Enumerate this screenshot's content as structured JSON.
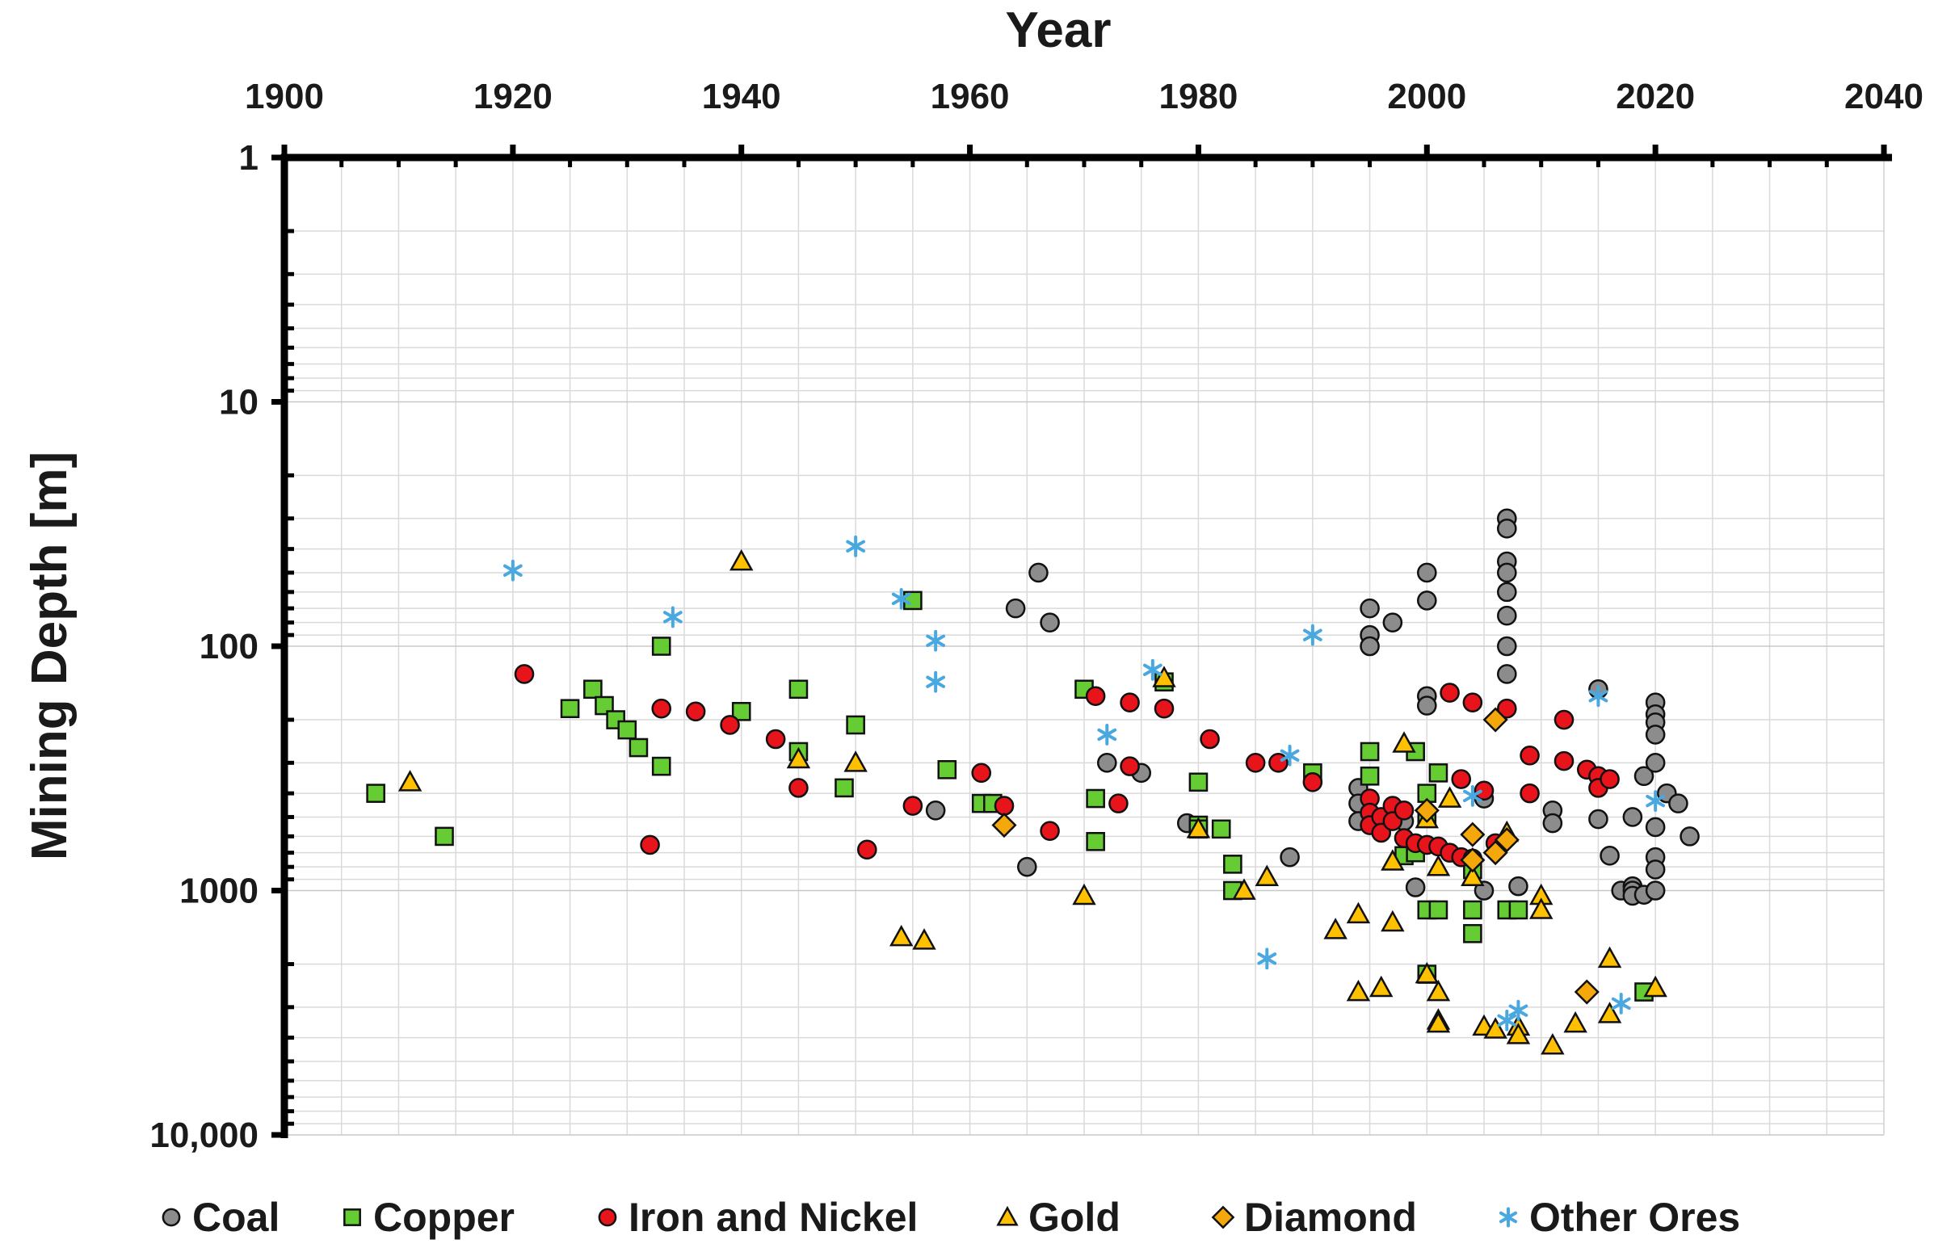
{
  "chart_data": {
    "type": "scatter",
    "title": "",
    "xlabel": "Year",
    "ylabel": "Mining Depth [m]",
    "xlim": [
      1900,
      2040
    ],
    "ylim": [
      1,
      10000
    ],
    "yscale": "log",
    "x_axis_position": "top",
    "y_axis_reversed": true,
    "xticks": [
      1900,
      1920,
      1940,
      1960,
      1980,
      2000,
      2020,
      2040
    ],
    "xtick_labels": [
      "1900",
      "1920",
      "1940",
      "1960",
      "1980",
      "2000",
      "2020",
      "2040"
    ],
    "yticks": [
      1,
      10,
      100,
      1000,
      10000
    ],
    "ytick_labels": [
      "1",
      "10",
      "100",
      "1000",
      "10,000"
    ],
    "grid": true,
    "legend_position": "bottom",
    "series": [
      {
        "name": "Coal",
        "marker": "circle",
        "color": "#8c8c8c",
        "points": [
          [
            1957,
            470
          ],
          [
            1965,
            800
          ],
          [
            1964,
            70
          ],
          [
            1966,
            50
          ],
          [
            1967,
            80
          ],
          [
            1972,
            300
          ],
          [
            1975,
            330
          ],
          [
            1979,
            530
          ],
          [
            1988,
            730
          ],
          [
            1994,
            380
          ],
          [
            1994,
            440
          ],
          [
            1994,
            520
          ],
          [
            1995,
            70
          ],
          [
            1995,
            90
          ],
          [
            1995,
            100
          ],
          [
            1997,
            80
          ],
          [
            1998,
            520
          ],
          [
            1999,
            970
          ],
          [
            2000,
            50
          ],
          [
            2000,
            65
          ],
          [
            2000,
            160
          ],
          [
            2000,
            175
          ],
          [
            2005,
            420
          ],
          [
            2005,
            1000
          ],
          [
            2007,
            30
          ],
          [
            2007,
            33
          ],
          [
            2007,
            45
          ],
          [
            2007,
            50
          ],
          [
            2007,
            60
          ],
          [
            2007,
            75
          ],
          [
            2007,
            100
          ],
          [
            2007,
            130
          ],
          [
            2008,
            960
          ],
          [
            2011,
            470
          ],
          [
            2011,
            530
          ],
          [
            2015,
            150
          ],
          [
            2015,
            510
          ],
          [
            2016,
            720
          ],
          [
            2017,
            1000
          ],
          [
            2018,
            960
          ],
          [
            2018,
            1000
          ],
          [
            2018,
            1050
          ],
          [
            2018,
            500
          ],
          [
            2019,
            340
          ],
          [
            2019,
            1040
          ],
          [
            2020,
            170
          ],
          [
            2020,
            190
          ],
          [
            2020,
            205
          ],
          [
            2020,
            230
          ],
          [
            2020,
            300
          ],
          [
            2020,
            550
          ],
          [
            2020,
            730
          ],
          [
            2020,
            820
          ],
          [
            2020,
            1000
          ],
          [
            2021,
            400
          ],
          [
            2022,
            440
          ],
          [
            2023,
            600
          ]
        ]
      },
      {
        "name": "Copper",
        "marker": "square",
        "color": "#66cc33",
        "points": [
          [
            1908,
            400
          ],
          [
            1914,
            600
          ],
          [
            1925,
            180
          ],
          [
            1927,
            150
          ],
          [
            1928,
            175
          ],
          [
            1929,
            200
          ],
          [
            1930,
            220
          ],
          [
            1931,
            260
          ],
          [
            1933,
            310
          ],
          [
            1933,
            100
          ],
          [
            1940,
            185
          ],
          [
            1945,
            150
          ],
          [
            1945,
            270
          ],
          [
            1949,
            380
          ],
          [
            1950,
            210
          ],
          [
            1955,
            65
          ],
          [
            1958,
            320
          ],
          [
            1961,
            440
          ],
          [
            1962,
            440
          ],
          [
            1970,
            150
          ],
          [
            1971,
            420
          ],
          [
            1971,
            630
          ],
          [
            1977,
            140
          ],
          [
            1980,
            540
          ],
          [
            1980,
            560
          ],
          [
            1980,
            360
          ],
          [
            1982,
            560
          ],
          [
            1983,
            780
          ],
          [
            1983,
            1000
          ],
          [
            1990,
            330
          ],
          [
            1995,
            270
          ],
          [
            1995,
            340
          ],
          [
            1998,
            720
          ],
          [
            1999,
            270
          ],
          [
            1999,
            700
          ],
          [
            2000,
            400
          ],
          [
            2000,
            500
          ],
          [
            2000,
            1200
          ],
          [
            2000,
            2200
          ],
          [
            2001,
            330
          ],
          [
            2001,
            1200
          ],
          [
            2004,
            1200
          ],
          [
            2004,
            1500
          ],
          [
            2004,
            820
          ],
          [
            2007,
            1200
          ],
          [
            2008,
            1200
          ],
          [
            2019,
            2600
          ]
        ]
      },
      {
        "name": "Iron and Nickel",
        "marker": "circle",
        "color": "#e8141b",
        "points": [
          [
            1921,
            130
          ],
          [
            1932,
            650
          ],
          [
            1933,
            180
          ],
          [
            1936,
            185
          ],
          [
            1939,
            210
          ],
          [
            1943,
            240
          ],
          [
            1945,
            380
          ],
          [
            1951,
            680
          ],
          [
            1955,
            450
          ],
          [
            1961,
            330
          ],
          [
            1963,
            450
          ],
          [
            1967,
            570
          ],
          [
            1971,
            160
          ],
          [
            1973,
            440
          ],
          [
            1974,
            170
          ],
          [
            1974,
            310
          ],
          [
            1977,
            180
          ],
          [
            1981,
            240
          ],
          [
            1985,
            300
          ],
          [
            1987,
            300
          ],
          [
            1990,
            360
          ],
          [
            1995,
            420
          ],
          [
            1995,
            480
          ],
          [
            1995,
            540
          ],
          [
            1996,
            500
          ],
          [
            1996,
            580
          ],
          [
            1997,
            450
          ],
          [
            1997,
            520
          ],
          [
            1998,
            470
          ],
          [
            1998,
            610
          ],
          [
            1999,
            640
          ],
          [
            2000,
            650
          ],
          [
            2001,
            660
          ],
          [
            2002,
            155
          ],
          [
            2002,
            700
          ],
          [
            2003,
            350
          ],
          [
            2003,
            730
          ],
          [
            2004,
            170
          ],
          [
            2004,
            740
          ],
          [
            2005,
            390
          ],
          [
            2006,
            640
          ],
          [
            2007,
            180
          ],
          [
            2009,
            280
          ],
          [
            2009,
            400
          ],
          [
            2012,
            200
          ],
          [
            2012,
            295
          ],
          [
            2014,
            320
          ],
          [
            2015,
            340
          ],
          [
            2015,
            380
          ],
          [
            2016,
            350
          ]
        ]
      },
      {
        "name": "Gold",
        "marker": "triangle",
        "color": "#ffc000",
        "points": [
          [
            1911,
            360
          ],
          [
            1940,
            45
          ],
          [
            1945,
            290
          ],
          [
            1950,
            300
          ],
          [
            1954,
            1550
          ],
          [
            1956,
            1600
          ],
          [
            1970,
            1050
          ],
          [
            1977,
            135
          ],
          [
            1980,
            560
          ],
          [
            1984,
            1000
          ],
          [
            1986,
            880
          ],
          [
            1992,
            1450
          ],
          [
            1994,
            1250
          ],
          [
            1994,
            2600
          ],
          [
            1996,
            2500
          ],
          [
            1997,
            1350
          ],
          [
            1997,
            760
          ],
          [
            1998,
            250
          ],
          [
            2000,
            2200
          ],
          [
            2000,
            510
          ],
          [
            2001,
            800
          ],
          [
            2001,
            2600
          ],
          [
            2001,
            3400
          ],
          [
            2001,
            3500
          ],
          [
            2002,
            420
          ],
          [
            2004,
            880
          ],
          [
            2005,
            3600
          ],
          [
            2006,
            3700
          ],
          [
            2007,
            580
          ],
          [
            2008,
            3600
          ],
          [
            2008,
            3900
          ],
          [
            2010,
            1050
          ],
          [
            2010,
            1200
          ],
          [
            2011,
            4300
          ],
          [
            2013,
            3500
          ],
          [
            2016,
            1900
          ],
          [
            2016,
            3200
          ],
          [
            2020,
            2500
          ]
        ]
      },
      {
        "name": "Diamond",
        "marker": "diamond",
        "color": "#f5a80c",
        "points": [
          [
            1963,
            540
          ],
          [
            2000,
            470
          ],
          [
            2004,
            590
          ],
          [
            2004,
            750
          ],
          [
            2006,
            700
          ],
          [
            2006,
            200
          ],
          [
            2007,
            620
          ],
          [
            2014,
            2600
          ]
        ]
      },
      {
        "name": "Other Ores",
        "marker": "asterisk",
        "color": "#4aa8e0",
        "points": [
          [
            1920,
            49
          ],
          [
            1934,
            76
          ],
          [
            1950,
            39
          ],
          [
            1954,
            64
          ],
          [
            1957,
            95
          ],
          [
            1957,
            140
          ],
          [
            1972,
            230
          ],
          [
            1976,
            125
          ],
          [
            1986,
            1900
          ],
          [
            1988,
            280
          ],
          [
            1990,
            90
          ],
          [
            2004,
            410
          ],
          [
            2007,
            3400
          ],
          [
            2008,
            3100
          ],
          [
            2015,
            160
          ],
          [
            2017,
            2900
          ],
          [
            2020,
            430
          ]
        ]
      }
    ]
  }
}
